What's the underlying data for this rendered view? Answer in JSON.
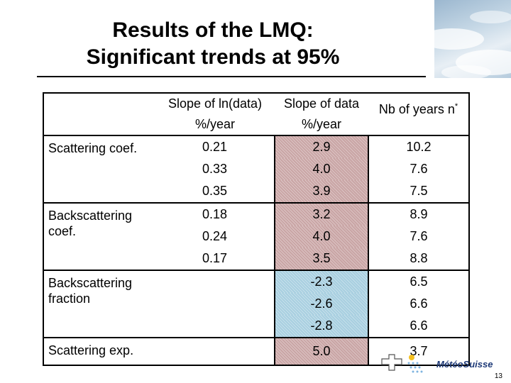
{
  "title": {
    "line1": "Results of the LMQ:",
    "line2": "Significant trends at 95%"
  },
  "table": {
    "headers": {
      "col1_line1": "Slope of ln(data)",
      "col1_line2": "%/year",
      "col2_line1": "Slope of data",
      "col2_line2": "%/year",
      "col3": "Nb of years n",
      "col3_sup": "*"
    },
    "groups": [
      {
        "label": "Scattering coef.",
        "rows": [
          {
            "ln": "0.21",
            "data": "2.9",
            "years": "10.2"
          },
          {
            "ln": "0.33",
            "data": "4.0",
            "years": "7.6"
          },
          {
            "ln": "0.35",
            "data": "3.9",
            "years": "7.5"
          }
        ]
      },
      {
        "label": "Backscattering coef.",
        "rows": [
          {
            "ln": "0.18",
            "data": "3.2",
            "years": "8.9"
          },
          {
            "ln": "0.24",
            "data": "4.0",
            "years": "7.6"
          },
          {
            "ln": "0.17",
            "data": "3.5",
            "years": "8.8"
          }
        ]
      },
      {
        "label": "Backscattering fraction",
        "rows": [
          {
            "ln": "",
            "data": "-2.3",
            "years": "6.5"
          },
          {
            "ln": "",
            "data": "-2.6",
            "years": "6.6"
          },
          {
            "ln": "",
            "data": "-2.8",
            "years": "6.6"
          }
        ]
      },
      {
        "label": "Scattering exp.",
        "rows": [
          {
            "ln": "",
            "data": "5.0",
            "years": "3.7"
          }
        ]
      }
    ]
  },
  "logo": {
    "text": "MétéoSuisse"
  },
  "page_number": "13",
  "colors": {
    "positive_fill": "#c9a5a5",
    "negative_fill": "#a8cfe0",
    "logo_blue": "#1e3a78"
  }
}
